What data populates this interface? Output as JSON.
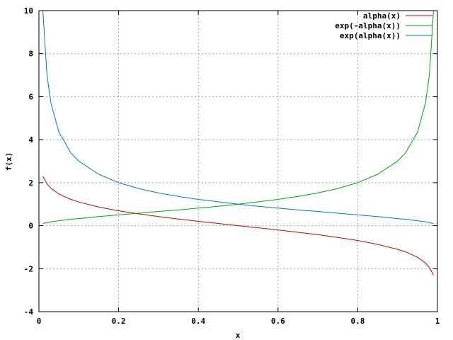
{
  "chart_data": {
    "type": "line",
    "xlabel": "x",
    "ylabel": "f(x)",
    "xlim": [
      0,
      1
    ],
    "ylim": [
      -4,
      10
    ],
    "x_ticks": [
      0,
      0.2,
      0.4,
      0.6,
      0.8,
      1
    ],
    "x_tick_labels": [
      "0",
      "0.2",
      "0.4",
      "0.6",
      "0.8",
      "1"
    ],
    "y_ticks": [
      -4,
      -2,
      0,
      2,
      4,
      6,
      8,
      10
    ],
    "y_tick_labels": [
      "-4",
      "-2",
      "0",
      "2",
      "4",
      "6",
      "8",
      "10"
    ],
    "grid": true,
    "legend_position": "top-right",
    "x": [
      0.01,
      0.02,
      0.03,
      0.05,
      0.08,
      0.1,
      0.15,
      0.2,
      0.25,
      0.3,
      0.35,
      0.4,
      0.45,
      0.5,
      0.55,
      0.6,
      0.65,
      0.7,
      0.75,
      0.8,
      0.85,
      0.9,
      0.92,
      0.95,
      0.97,
      0.98,
      0.99
    ],
    "series": [
      {
        "name": "alpha(x)",
        "color": "#cc0000",
        "values": [
          2.3,
          1.95,
          1.74,
          1.47,
          1.22,
          1.1,
          0.87,
          0.69,
          0.55,
          0.42,
          0.31,
          0.2,
          0.1,
          0.0,
          -0.1,
          -0.2,
          -0.31,
          -0.42,
          -0.55,
          -0.69,
          -0.87,
          -1.1,
          -1.22,
          -1.47,
          -1.74,
          -1.95,
          -2.3
        ]
      },
      {
        "name": "exp(-alpha(x))",
        "color": "#00aa00",
        "values": [
          0.1,
          0.14,
          0.18,
          0.23,
          0.3,
          0.33,
          0.42,
          0.5,
          0.58,
          0.66,
          0.73,
          0.82,
          0.9,
          1.0,
          1.11,
          1.22,
          1.36,
          1.52,
          1.73,
          2.0,
          2.39,
          3.0,
          3.39,
          4.35,
          5.7,
          7.03,
          9.97
        ]
      },
      {
        "name": "exp(alpha(x))",
        "color": "#0077cc",
        "values": [
          9.97,
          7.03,
          5.7,
          4.35,
          3.39,
          3.0,
          2.39,
          2.0,
          1.73,
          1.52,
          1.36,
          1.22,
          1.11,
          1.0,
          0.9,
          0.82,
          0.73,
          0.66,
          0.58,
          0.5,
          0.42,
          0.33,
          0.3,
          0.23,
          0.18,
          0.14,
          0.1
        ]
      }
    ]
  }
}
